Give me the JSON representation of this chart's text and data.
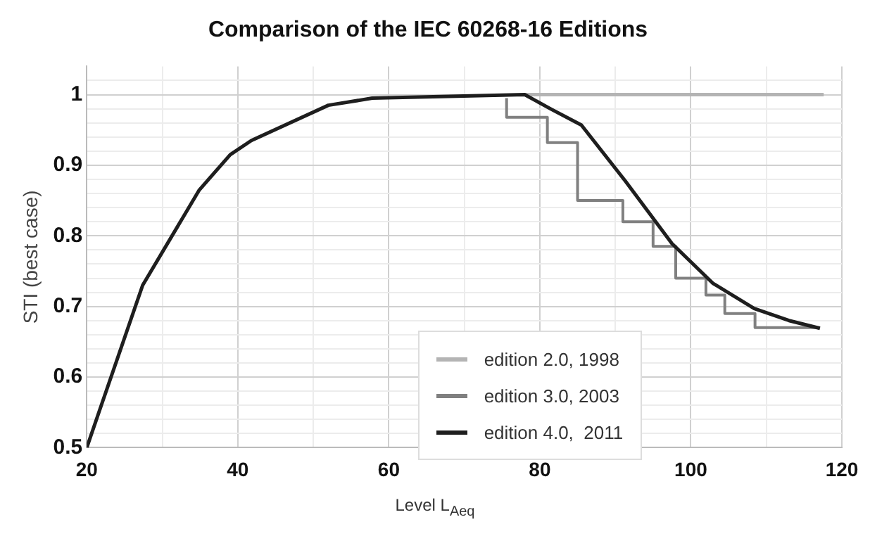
{
  "chart_data": {
    "type": "line",
    "title": "Comparison of the IEC 60268-16 Editions",
    "xlabel": "Level L$_{Aeq}$",
    "ylabel": "STI (best case)",
    "xlim": [
      20,
      120
    ],
    "xticks": [
      20,
      {
        "value": 30,
        "label": null
      },
      40,
      {
        "value": 50,
        "label": null
      },
      60,
      {
        "value": 70,
        "label": null
      },
      80,
      {
        "value": 90,
        "label": null
      },
      100,
      {
        "value": 110,
        "label": null
      },
      120
    ],
    "ylim": [
      0.5,
      1.04
    ],
    "yticks": [
      0.5,
      {
        "value": 0.52,
        "label": null
      },
      {
        "value": 0.54,
        "label": null
      },
      {
        "value": 0.56,
        "label": null
      },
      {
        "value": 0.58,
        "label": null
      },
      0.6,
      {
        "value": 0.62,
        "label": null
      },
      {
        "value": 0.64,
        "label": null
      },
      {
        "value": 0.66,
        "label": null
      },
      {
        "value": 0.68,
        "label": null
      },
      0.7,
      {
        "value": 0.72,
        "label": null
      },
      {
        "value": 0.74,
        "label": null
      },
      {
        "value": 0.76,
        "label": null
      },
      {
        "value": 0.78,
        "label": null
      },
      0.8,
      {
        "value": 0.82,
        "label": null
      },
      {
        "value": 0.84,
        "label": null
      },
      {
        "value": 0.86,
        "label": null
      },
      {
        "value": 0.88,
        "label": null
      },
      0.9,
      {
        "value": 0.92,
        "label": null
      },
      {
        "value": 0.94,
        "label": null
      },
      {
        "value": 0.96,
        "label": null
      },
      {
        "value": 0.98,
        "label": null
      },
      1,
      {
        "value": 1.02,
        "label": null
      }
    ],
    "grid": true,
    "legend": "center",
    "marker": "none",
    "line_style": "solid",
    "series": [
      {
        "name": "edition 2.0, 1998",
        "color": "#b4b4b4",
        "x": [
          78,
          117.6
        ],
        "values": [
          1,
          1
        ]
      },
      {
        "name": "edition 3.0, 2003",
        "type": "step",
        "color": "#808080",
        "x": [
          75.6,
          81,
          85,
          91,
          95,
          98,
          102,
          104.5,
          108.5,
          113,
          117
        ],
        "values": [
          0.995,
          0.968,
          0.932,
          0.85,
          0.82,
          0.785,
          0.74,
          0.716,
          0.69,
          0.67,
          0.67
        ]
      },
      {
        "name": "edition 4.0,  2011",
        "color": "#1e1e1e",
        "x": [
          20,
          21.6,
          27.4,
          34.9,
          39,
          41.8,
          52,
          57.8,
          78,
          81.4,
          85.5,
          91.3,
          97.5,
          102.9,
          108.4,
          113,
          117.1
        ],
        "values": [
          0.5,
          0.55,
          0.73,
          0.865,
          0.915,
          0.935,
          0.985,
          0.995,
          1,
          0.98,
          0.957,
          0.878,
          0.789,
          0.733,
          0.697,
          0.68,
          0.669
        ]
      }
    ]
  }
}
